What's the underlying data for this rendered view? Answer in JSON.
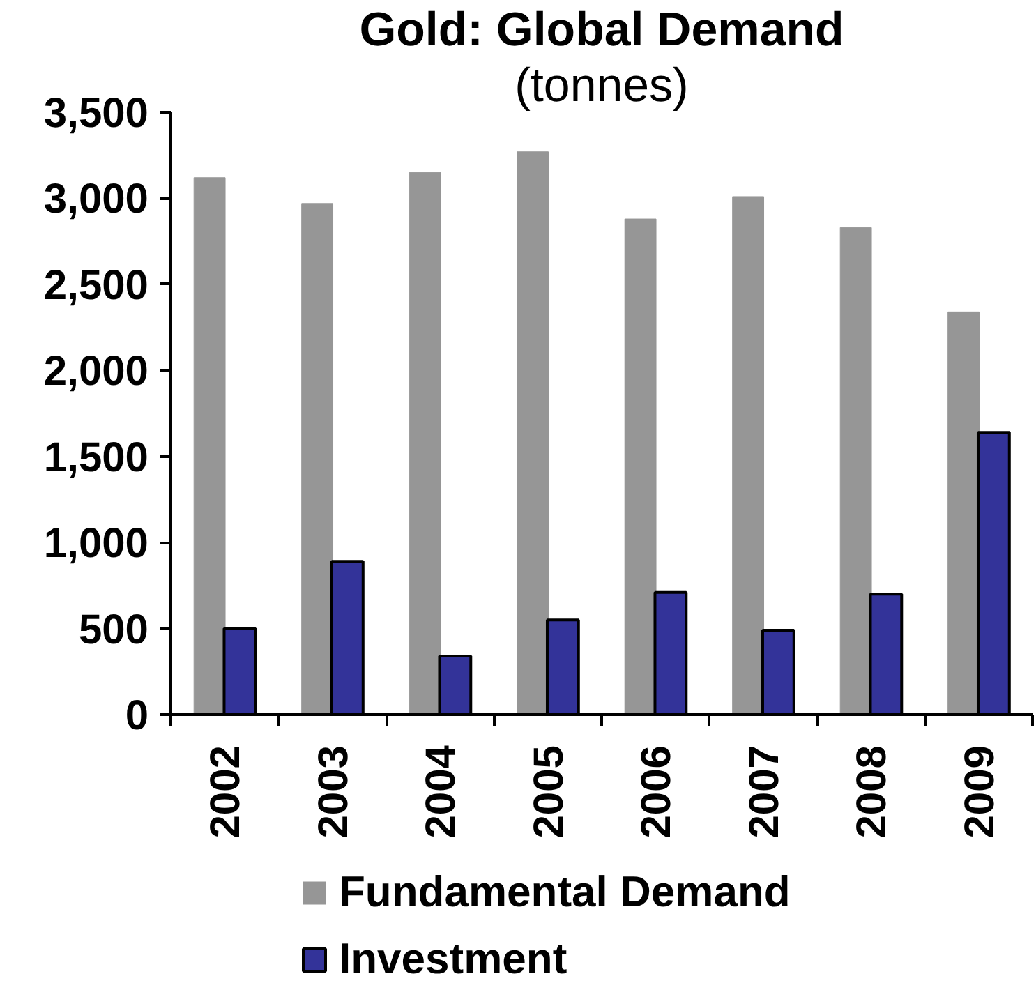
{
  "chart_data": {
    "type": "bar",
    "title": "Gold: Global Demand",
    "subtitle": "(tonnes)",
    "categories": [
      "2002",
      "2003",
      "2004",
      "2005",
      "2006",
      "2007",
      "2008",
      "2009"
    ],
    "series": [
      {
        "name": "Fundamental Demand",
        "color": "#969696",
        "values": [
          3120,
          2970,
          3150,
          3270,
          2880,
          3010,
          2830,
          2340
        ]
      },
      {
        "name": "Investment",
        "color": "#333399",
        "values": [
          500,
          890,
          340,
          550,
          710,
          490,
          700,
          1640
        ]
      }
    ],
    "ylim": [
      0,
      3500
    ],
    "yticks": [
      0,
      500,
      {
        "value": 1000,
        "label": "1,000"
      },
      {
        "value": 1500,
        "label": "1,500"
      },
      {
        "value": 2000,
        "label": "2,000"
      },
      {
        "value": 2500,
        "label": "2,500"
      },
      {
        "value": 3000,
        "label": "3,000"
      },
      {
        "value": 3500,
        "label": "3,500"
      }
    ],
    "legend": "bottom"
  }
}
